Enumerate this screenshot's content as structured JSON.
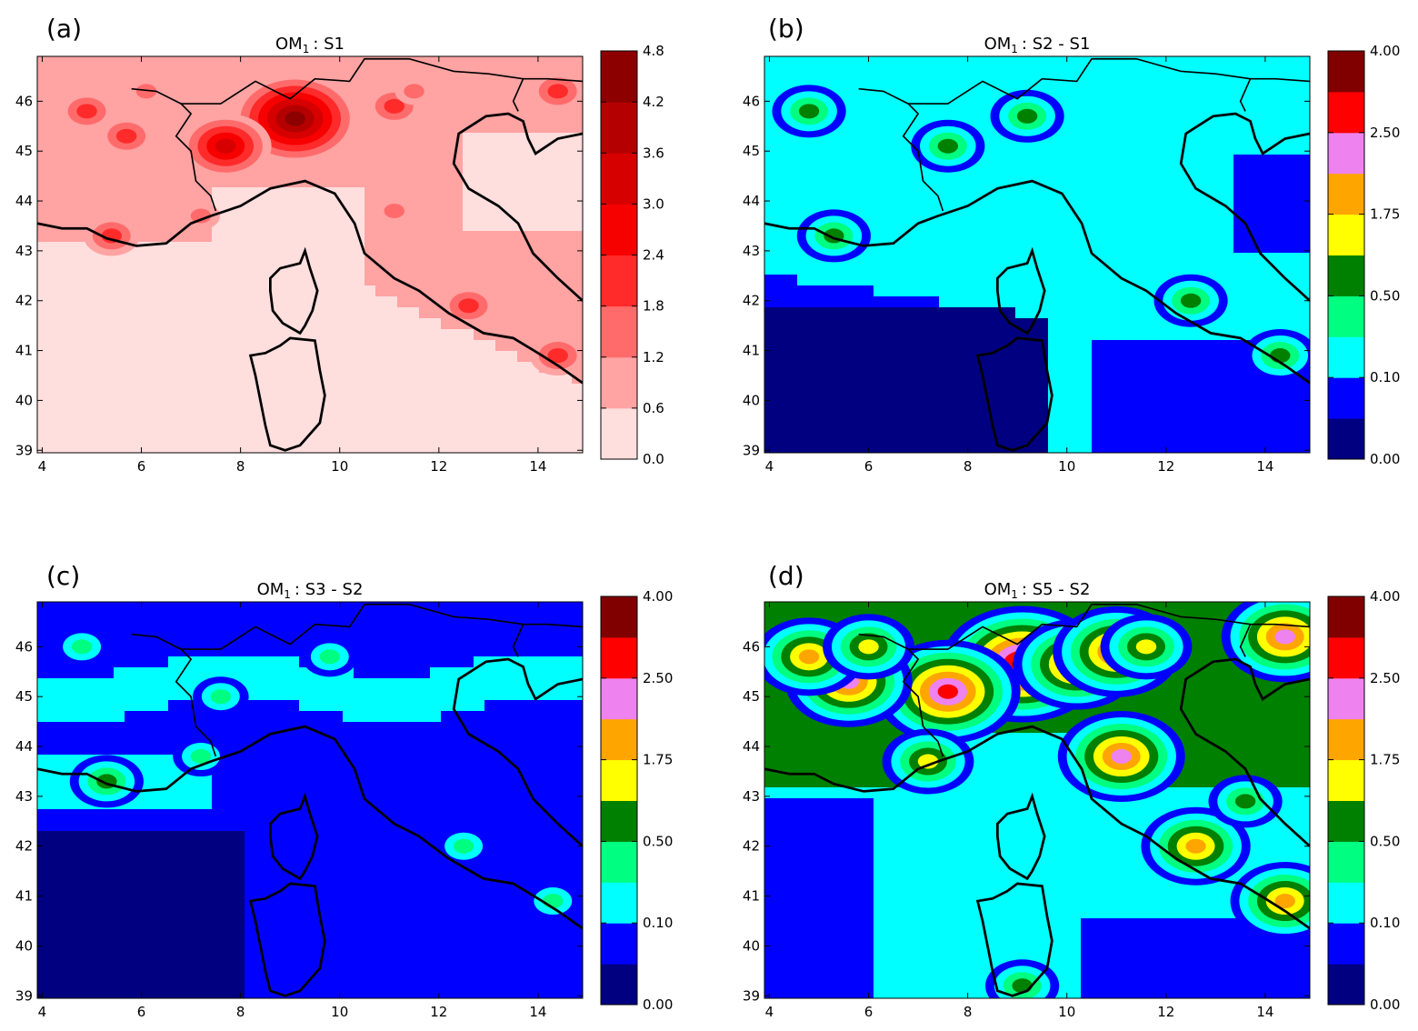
{
  "chart_data": [
    {
      "type": "heatmap",
      "panel_label": "(a)",
      "title": "OM₁ :  S1",
      "title_main": "OM",
      "title_sub": "1",
      "title_rest": ":  S1",
      "xticks": [
        "4",
        "6",
        "8",
        "10",
        "12",
        "14"
      ],
      "yticks": [
        "39",
        "40",
        "41",
        "42",
        "43",
        "44",
        "45",
        "46"
      ],
      "xlim": [
        3.9,
        14.9
      ],
      "ylim": [
        38.95,
        46.9
      ],
      "colorbar": {
        "levels": [
          0.0,
          0.6,
          1.2,
          1.8,
          2.4,
          3.0,
          3.6,
          4.2,
          4.8
        ],
        "labels": [
          "0.0",
          "0.6",
          "1.2",
          "1.8",
          "2.4",
          "3.0",
          "3.6",
          "4.2",
          "4.8"
        ],
        "colors": [
          "#ffdede",
          "#ffa3a3",
          "#ff6b6b",
          "#ff2a2a",
          "#f70000",
          "#d60000",
          "#b50000",
          "#8c0000"
        ]
      },
      "field": "concentration",
      "hotspots": [
        {
          "lon": 9.1,
          "lat": 45.65,
          "value": 4.3
        },
        {
          "lon": 7.7,
          "lat": 45.1,
          "value": 3.0
        },
        {
          "lon": 5.7,
          "lat": 45.3,
          "value": 2.0
        },
        {
          "lon": 4.9,
          "lat": 45.8,
          "value": 1.9
        },
        {
          "lon": 6.1,
          "lat": 46.2,
          "value": 1.7
        },
        {
          "lon": 11.1,
          "lat": 45.9,
          "value": 2.0
        },
        {
          "lon": 11.5,
          "lat": 46.2,
          "value": 1.5
        },
        {
          "lon": 14.4,
          "lat": 46.2,
          "value": 2.0
        },
        {
          "lon": 5.4,
          "lat": 43.3,
          "value": 2.0
        },
        {
          "lon": 11.1,
          "lat": 43.8,
          "value": 1.6
        },
        {
          "lon": 12.6,
          "lat": 41.9,
          "value": 2.1
        },
        {
          "lon": 14.4,
          "lat": 40.9,
          "value": 2.2
        },
        {
          "lon": 7.2,
          "lat": 43.7,
          "value": 1.4
        }
      ]
    },
    {
      "type": "heatmap",
      "panel_label": "(b)",
      "title": "OM₁ :  S2 - S1",
      "title_main": "OM",
      "title_sub": "1",
      "title_rest": ":  S2 - S1",
      "xticks": [
        "4",
        "6",
        "8",
        "10",
        "12",
        "14"
      ],
      "yticks": [
        "39",
        "40",
        "41",
        "42",
        "43",
        "44",
        "45",
        "46"
      ],
      "xlim": [
        3.9,
        14.9
      ],
      "ylim": [
        38.95,
        46.9
      ],
      "colorbar": {
        "levels": [
          0.0,
          0.05,
          0.1,
          0.25,
          0.5,
          1.0,
          1.75,
          2.0,
          2.5,
          3.0,
          4.0
        ],
        "labels": [
          "0.00",
          "0.10",
          "0.50",
          "1.75",
          "2.50",
          "4.00"
        ],
        "label_at": [
          0,
          2,
          4,
          6,
          8,
          10
        ],
        "colors": [
          "#000080",
          "#0000ff",
          "#00ffff",
          "#00ff80",
          "#008000",
          "#ffff00",
          "#ffa500",
          "#ee82ee",
          "#ff0000",
          "#800000"
        ]
      },
      "field": "difference",
      "hotspots": [
        {
          "lon": 9.2,
          "lat": 45.7,
          "value": 0.7
        },
        {
          "lon": 7.6,
          "lat": 45.1,
          "value": 0.55
        },
        {
          "lon": 4.8,
          "lat": 45.8,
          "value": 0.6
        },
        {
          "lon": 5.3,
          "lat": 43.3,
          "value": 0.6
        },
        {
          "lon": 12.5,
          "lat": 42.0,
          "value": 0.55
        },
        {
          "lon": 14.3,
          "lat": 40.9,
          "value": 0.55
        }
      ]
    },
    {
      "type": "heatmap",
      "panel_label": "(c)",
      "title": "OM₁ :  S3 - S2",
      "title_main": "OM",
      "title_sub": "1",
      "title_rest": ":  S3 - S2",
      "xticks": [
        "4",
        "6",
        "8",
        "10",
        "12",
        "14"
      ],
      "yticks": [
        "39",
        "40",
        "41",
        "42",
        "43",
        "44",
        "45",
        "46"
      ],
      "xlim": [
        3.9,
        14.9
      ],
      "ylim": [
        38.95,
        46.9
      ],
      "colorbar": {
        "levels": [
          0.0,
          0.05,
          0.1,
          0.25,
          0.5,
          1.0,
          1.75,
          2.0,
          2.5,
          3.0,
          4.0
        ],
        "labels": [
          "0.00",
          "0.10",
          "0.50",
          "1.75",
          "2.50",
          "4.00"
        ],
        "label_at": [
          0,
          2,
          4,
          6,
          8,
          10
        ],
        "colors": [
          "#000080",
          "#0000ff",
          "#00ffff",
          "#00ff80",
          "#008000",
          "#ffff00",
          "#ffa500",
          "#ee82ee",
          "#ff0000",
          "#800000"
        ]
      },
      "field": "difference",
      "hotspots": [
        {
          "lon": 7.6,
          "lat": 45.0,
          "value": 0.3
        },
        {
          "lon": 9.8,
          "lat": 45.8,
          "value": 0.3
        },
        {
          "lon": 7.2,
          "lat": 43.8,
          "value": 0.3
        },
        {
          "lon": 12.5,
          "lat": 42.0,
          "value": 0.3
        },
        {
          "lon": 14.3,
          "lat": 40.9,
          "value": 0.3
        },
        {
          "lon": 5.3,
          "lat": 43.3,
          "value": 0.6
        },
        {
          "lon": 4.8,
          "lat": 46.0,
          "value": 0.3
        }
      ]
    },
    {
      "type": "heatmap",
      "panel_label": "(d)",
      "title": "OM₁ :  S5 - S2",
      "title_main": "OM",
      "title_sub": "1",
      "title_rest": ":  S5 - S2",
      "xticks": [
        "4",
        "6",
        "8",
        "10",
        "12",
        "14"
      ],
      "yticks": [
        "39",
        "40",
        "41",
        "42",
        "43",
        "44",
        "45",
        "46"
      ],
      "xlim": [
        3.9,
        14.9
      ],
      "ylim": [
        38.95,
        46.9
      ],
      "colorbar": {
        "levels": [
          0.0,
          0.05,
          0.1,
          0.25,
          0.5,
          1.0,
          1.75,
          2.0,
          2.5,
          3.0,
          4.0
        ],
        "labels": [
          "0.00",
          "0.10",
          "0.50",
          "1.75",
          "2.50",
          "4.00"
        ],
        "label_at": [
          0,
          2,
          4,
          6,
          8,
          10
        ],
        "colors": [
          "#000080",
          "#0000ff",
          "#00ffff",
          "#00ff80",
          "#008000",
          "#ffff00",
          "#ffa500",
          "#ee82ee",
          "#ff0000",
          "#800000"
        ]
      },
      "field": "difference",
      "hotspots": [
        {
          "lon": 9.1,
          "lat": 45.65,
          "value": 3.5
        },
        {
          "lon": 10.2,
          "lat": 45.65,
          "value": 2.2
        },
        {
          "lon": 7.6,
          "lat": 45.1,
          "value": 2.8
        },
        {
          "lon": 5.6,
          "lat": 45.3,
          "value": 2.2
        },
        {
          "lon": 4.8,
          "lat": 45.8,
          "value": 1.8
        },
        {
          "lon": 6.0,
          "lat": 46.0,
          "value": 1.2
        },
        {
          "lon": 11.0,
          "lat": 45.9,
          "value": 2.2
        },
        {
          "lon": 11.6,
          "lat": 46.0,
          "value": 1.3
        },
        {
          "lon": 14.4,
          "lat": 46.2,
          "value": 2.1
        },
        {
          "lon": 11.1,
          "lat": 43.8,
          "value": 2.0
        },
        {
          "lon": 12.6,
          "lat": 42.0,
          "value": 1.8
        },
        {
          "lon": 14.4,
          "lat": 40.9,
          "value": 1.8
        },
        {
          "lon": 7.2,
          "lat": 43.7,
          "value": 1.6
        },
        {
          "lon": 9.1,
          "lat": 39.2,
          "value": 0.7
        },
        {
          "lon": 13.6,
          "lat": 42.9,
          "value": 0.7
        }
      ]
    }
  ]
}
